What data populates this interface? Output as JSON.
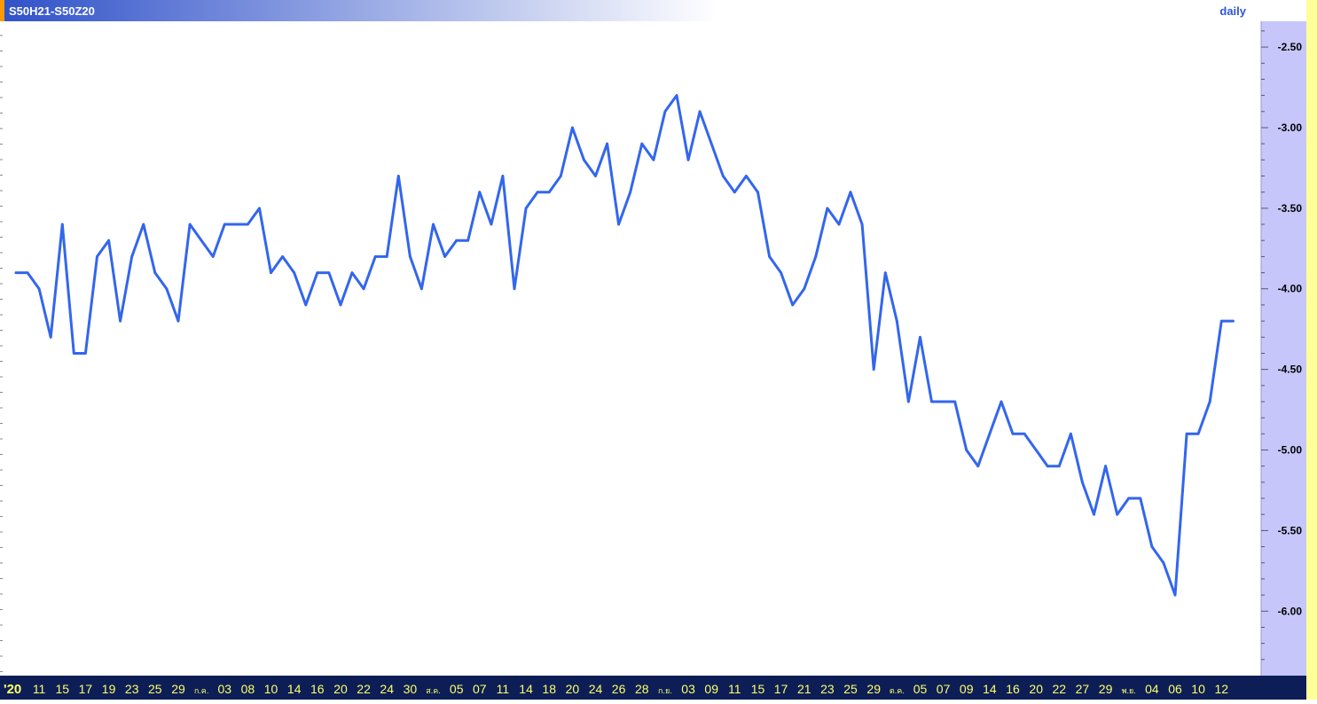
{
  "header": {
    "symbol": "S50H21-S50Z20",
    "period": "daily"
  },
  "colors": {
    "line": "#3366ee",
    "axis_panel": "#c6c6fa",
    "header_bar_start": "#2f51c9",
    "header_bar_end": "#ffffff",
    "bottom_bar": "#0d1e57",
    "tick_text": "#ffff66",
    "header_text": "#ffffff",
    "period_text": "#2d55d8",
    "marker": "#ff9900",
    "right_border": "#ffff99"
  },
  "chart_data": {
    "type": "line",
    "title": "S50H21-S50Z20",
    "xlabel": "",
    "ylabel": "",
    "ylim": [
      -6.4,
      -2.34
    ],
    "y_ticks": [
      -2.5,
      -3.0,
      -3.5,
      -4.0,
      -4.5,
      -5.0,
      -5.5,
      -6.0
    ],
    "y_tick_labels": [
      "-2.50",
      "-3.00",
      "-3.50",
      "-4.00",
      "-4.50",
      "-5.00",
      "-5.50",
      "-6.00"
    ],
    "grid": false,
    "x_tick_labels": [
      {
        "i": 0,
        "label": "'20",
        "highlight": true
      },
      {
        "i": 2,
        "label": "11"
      },
      {
        "i": 4,
        "label": "15"
      },
      {
        "i": 6,
        "label": "17"
      },
      {
        "i": 8,
        "label": "19"
      },
      {
        "i": 10,
        "label": "23"
      },
      {
        "i": 12,
        "label": "25"
      },
      {
        "i": 14,
        "label": "29"
      },
      {
        "i": 16,
        "label": "ก.ค.",
        "small": true
      },
      {
        "i": 18,
        "label": "03"
      },
      {
        "i": 20,
        "label": "08"
      },
      {
        "i": 22,
        "label": "10"
      },
      {
        "i": 24,
        "label": "14"
      },
      {
        "i": 26,
        "label": "16"
      },
      {
        "i": 28,
        "label": "20"
      },
      {
        "i": 30,
        "label": "22"
      },
      {
        "i": 32,
        "label": "24"
      },
      {
        "i": 34,
        "label": "30"
      },
      {
        "i": 36,
        "label": "ส.ค.",
        "small": true
      },
      {
        "i": 38,
        "label": "05"
      },
      {
        "i": 40,
        "label": "07"
      },
      {
        "i": 42,
        "label": "11"
      },
      {
        "i": 44,
        "label": "14"
      },
      {
        "i": 46,
        "label": "18"
      },
      {
        "i": 48,
        "label": "20"
      },
      {
        "i": 50,
        "label": "24"
      },
      {
        "i": 52,
        "label": "26"
      },
      {
        "i": 54,
        "label": "28"
      },
      {
        "i": 56,
        "label": "ก.ย.",
        "small": true
      },
      {
        "i": 58,
        "label": "03"
      },
      {
        "i": 60,
        "label": "09"
      },
      {
        "i": 62,
        "label": "11"
      },
      {
        "i": 64,
        "label": "15"
      },
      {
        "i": 66,
        "label": "17"
      },
      {
        "i": 68,
        "label": "21"
      },
      {
        "i": 70,
        "label": "23"
      },
      {
        "i": 72,
        "label": "25"
      },
      {
        "i": 74,
        "label": "29"
      },
      {
        "i": 76,
        "label": "ต.ค.",
        "small": true
      },
      {
        "i": 78,
        "label": "05"
      },
      {
        "i": 80,
        "label": "07"
      },
      {
        "i": 82,
        "label": "09"
      },
      {
        "i": 84,
        "label": "14"
      },
      {
        "i": 86,
        "label": "16"
      },
      {
        "i": 88,
        "label": "20"
      },
      {
        "i": 90,
        "label": "22"
      },
      {
        "i": 92,
        "label": "27"
      },
      {
        "i": 94,
        "label": "29"
      },
      {
        "i": 96,
        "label": "พ.ย.",
        "small": true
      },
      {
        "i": 98,
        "label": "04"
      },
      {
        "i": 100,
        "label": "06"
      },
      {
        "i": 102,
        "label": "10"
      },
      {
        "i": 104,
        "label": "12"
      }
    ],
    "series": [
      {
        "values": [
          -3.9,
          -3.9,
          -4.0,
          -4.3,
          -3.6,
          -4.4,
          -4.4,
          -3.8,
          -3.7,
          -4.2,
          -3.8,
          -3.6,
          -3.9,
          -4.0,
          -4.2,
          -3.6,
          -3.7,
          -3.8,
          -3.6,
          -3.6,
          -3.6,
          -3.5,
          -3.9,
          -3.8,
          -3.9,
          -4.1,
          -3.9,
          -3.9,
          -4.1,
          -3.9,
          -4.0,
          -3.8,
          -3.8,
          -3.3,
          -3.8,
          -4.0,
          -3.6,
          -3.8,
          -3.7,
          -3.7,
          -3.4,
          -3.6,
          -3.3,
          -4.0,
          -3.5,
          -3.4,
          -3.4,
          -3.3,
          -3.0,
          -3.2,
          -3.3,
          -3.1,
          -3.6,
          -3.4,
          -3.1,
          -3.2,
          -2.9,
          -2.8,
          -3.2,
          -2.9,
          -3.1,
          -3.3,
          -3.4,
          -3.3,
          -3.4,
          -3.8,
          -3.9,
          -4.1,
          -4.0,
          -3.8,
          -3.5,
          -3.6,
          -3.4,
          -3.6,
          -4.5,
          -3.9,
          -4.2,
          -4.7,
          -4.3,
          -4.7,
          -4.7,
          -4.7,
          -5.0,
          -5.1,
          -4.9,
          -4.7,
          -4.9,
          -4.9,
          -5.0,
          -5.1,
          -5.1,
          -4.9,
          -5.2,
          -5.4,
          -5.1,
          -5.4,
          -5.3,
          -5.3,
          -5.6,
          -5.7,
          -5.9,
          -4.9,
          -4.9,
          -4.7,
          -4.2,
          -4.2
        ]
      }
    ]
  }
}
